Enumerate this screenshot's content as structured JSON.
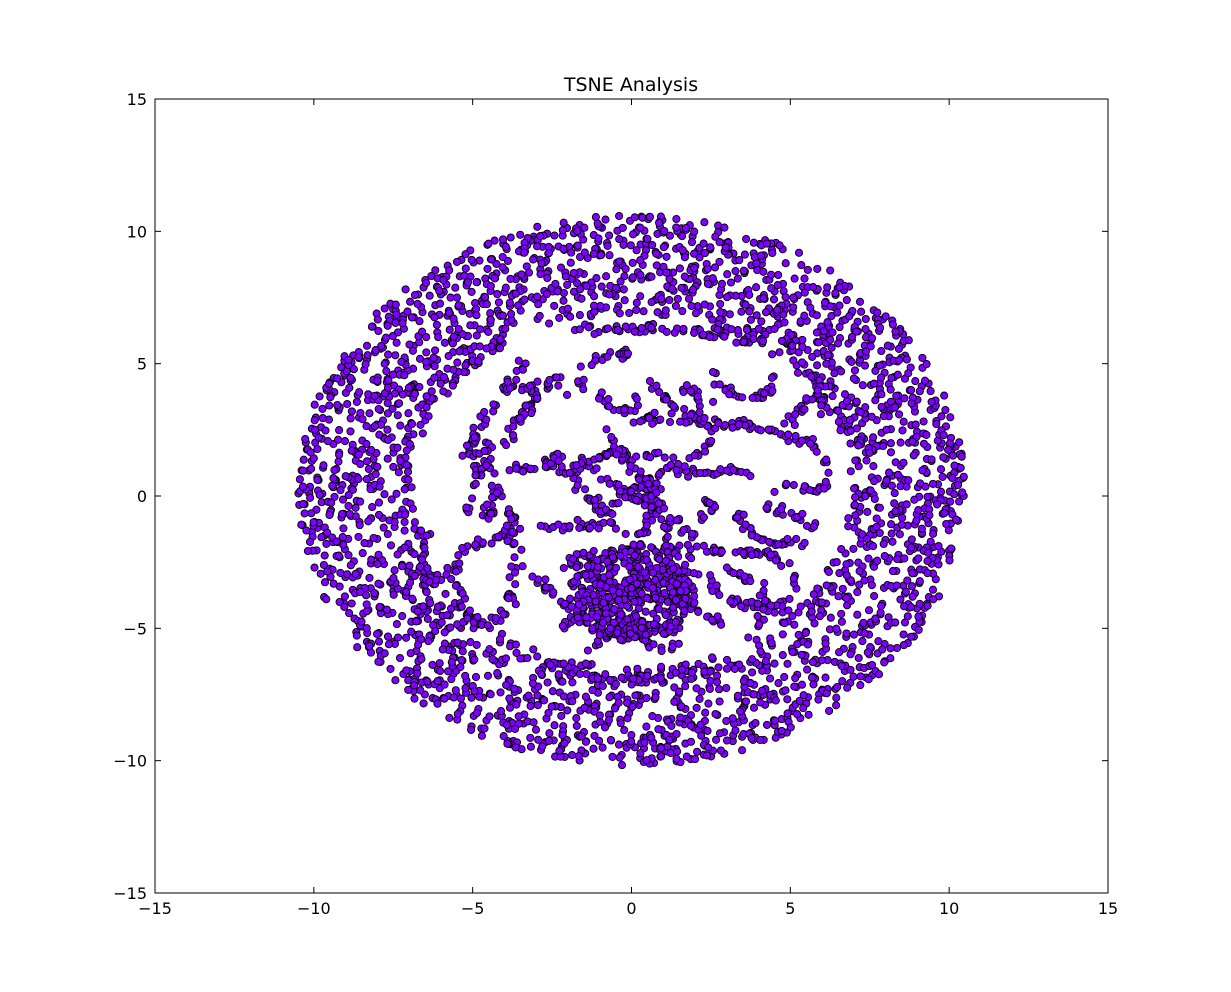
{
  "chart_data": {
    "type": "scatter",
    "title": "TSNE Analysis",
    "xlabel": "",
    "ylabel": "",
    "xlim": [
      -15,
      15
    ],
    "ylim": [
      -15,
      15
    ],
    "x_ticks": [
      -15,
      -10,
      -5,
      0,
      5,
      10,
      15
    ],
    "y_ticks": [
      -15,
      -10,
      -5,
      0,
      5,
      10,
      15
    ],
    "x_tick_labels": [
      "−15",
      "−10",
      "−5",
      "0",
      "5",
      "10",
      "15"
    ],
    "y_tick_labels": [
      "−15",
      "−10",
      "−5",
      "0",
      "5",
      "10",
      "15"
    ],
    "grid": false,
    "marker_color": "#7f00ff",
    "marker_edge_color": "#000000",
    "outer_ring": {
      "center": [
        0.0,
        0.2
      ],
      "outer_radius_x": 10.5,
      "outer_radius_y": 10.4,
      "inner_radius_x": 6.9,
      "inner_radius_y": 6.7,
      "approx_points": 2600
    },
    "inner_curves": [
      [
        [
          -5.2,
          1.5
        ],
        [
          -4.6,
          3.0
        ],
        [
          -3.6,
          4.6
        ],
        [
          -3.4,
          5.3
        ]
      ],
      [
        [
          -1.8,
          6.3
        ],
        [
          0.0,
          6.4
        ],
        [
          1.5,
          6.3
        ],
        [
          3.0,
          6.2
        ]
      ],
      [
        [
          2.0,
          6.1
        ],
        [
          3.5,
          5.9
        ],
        [
          4.5,
          5.9
        ],
        [
          5.3,
          5.8
        ]
      ],
      [
        [
          -3.5,
          4.1
        ],
        [
          -2.0,
          4.0
        ],
        [
          -1.3,
          4.2
        ]
      ],
      [
        [
          -4.0,
          2.0
        ],
        [
          -3.2,
          3.5
        ],
        [
          -2.3,
          4.6
        ],
        [
          -1.0,
          5.2
        ],
        [
          0.0,
          5.4
        ]
      ],
      [
        [
          -1.2,
          4.0
        ],
        [
          -0.6,
          3.3
        ],
        [
          0.0,
          3.2
        ],
        [
          0.2,
          3.8
        ]
      ],
      [
        [
          -5.0,
          2.4
        ],
        [
          -4.9,
          1.1
        ],
        [
          -3.9,
          0.9
        ],
        [
          -2.8,
          1.1
        ],
        [
          -2.2,
          1.6
        ]
      ],
      [
        [
          -5.2,
          -0.7
        ],
        [
          -4.8,
          0.8
        ],
        [
          -4.5,
          2.0
        ]
      ],
      [
        [
          -6.5,
          -1.3
        ],
        [
          -6.6,
          -2.5
        ],
        [
          -6.4,
          -3.6
        ]
      ],
      [
        [
          -5.6,
          -3.0
        ],
        [
          -5.3,
          -2.0
        ],
        [
          -4.0,
          -1.5
        ],
        [
          -2.5,
          -1.2
        ],
        [
          -0.6,
          -1.1
        ]
      ],
      [
        [
          -5.6,
          -3.2
        ],
        [
          -5.1,
          -4.6
        ],
        [
          -4.5,
          -4.8
        ]
      ],
      [
        [
          -3.8,
          -0.4
        ],
        [
          -3.7,
          -2.2
        ],
        [
          -3.8,
          -3.7
        ],
        [
          -4.2,
          -4.7
        ]
      ],
      [
        [
          -3.0,
          -6.0
        ],
        [
          -2.0,
          -6.6
        ],
        [
          -0.6,
          -7.0
        ],
        [
          1.0,
          -6.8
        ]
      ],
      [
        [
          -1.6,
          -6.6
        ],
        [
          -1.0,
          -5.4
        ],
        [
          0.2,
          -4.8
        ],
        [
          1.5,
          -5.2
        ]
      ],
      [
        [
          -2.6,
          -5.4
        ],
        [
          -1.5,
          -4.2
        ],
        [
          0.0,
          -3.8
        ],
        [
          1.5,
          -4.0
        ],
        [
          2.8,
          -4.8
        ]
      ],
      [
        [
          -1.0,
          2.6
        ],
        [
          -0.4,
          1.8
        ],
        [
          0.2,
          0.8
        ],
        [
          0.6,
          -0.6
        ],
        [
          0.2,
          -2.0
        ],
        [
          0.0,
          -3.4
        ],
        [
          0.3,
          -4.5
        ]
      ],
      [
        [
          -1.6,
          1.5
        ],
        [
          -0.6,
          0.4
        ],
        [
          0.5,
          -0.4
        ],
        [
          1.4,
          -1.0
        ],
        [
          2.0,
          -1.5
        ]
      ],
      [
        [
          -2.6,
          1.4
        ],
        [
          -1.8,
          0.6
        ],
        [
          -1.0,
          -0.4
        ],
        [
          -0.2,
          -1.4
        ]
      ],
      [
        [
          1.4,
          0.9
        ],
        [
          2.4,
          0.9
        ],
        [
          3.5,
          1.0
        ],
        [
          4.0,
          0.7
        ]
      ],
      [
        [
          3.3,
          2.7
        ],
        [
          4.6,
          2.4
        ],
        [
          5.7,
          2.0
        ],
        [
          6.2,
          1.0
        ],
        [
          6.0,
          0.2
        ],
        [
          5.0,
          0.4
        ],
        [
          4.5,
          0.4
        ]
      ],
      [
        [
          4.9,
          2.6
        ],
        [
          5.5,
          3.6
        ],
        [
          6.1,
          4.2
        ]
      ],
      [
        [
          4.1,
          -0.3
        ],
        [
          4.6,
          -0.5
        ],
        [
          5.6,
          -0.9
        ],
        [
          5.8,
          -1.3
        ]
      ],
      [
        [
          3.6,
          -0.5
        ],
        [
          3.3,
          -1.0
        ],
        [
          4.2,
          -1.8
        ],
        [
          5.6,
          -1.8
        ]
      ],
      [
        [
          2.2,
          0.1
        ],
        [
          2.5,
          -0.4
        ],
        [
          2.2,
          -0.9
        ]
      ],
      [
        [
          1.6,
          -1.8
        ],
        [
          3.0,
          -2.2
        ],
        [
          4.4,
          -2.2
        ],
        [
          5.0,
          -2.6
        ],
        [
          5.2,
          -3.2
        ],
        [
          4.8,
          -3.9
        ]
      ],
      [
        [
          2.3,
          -3.3
        ],
        [
          3.2,
          -4.0
        ],
        [
          4.5,
          -4.2
        ],
        [
          5.6,
          -4.6
        ]
      ],
      [
        [
          -2.3,
          -2.6
        ],
        [
          -1.2,
          -2.2
        ],
        [
          0.0,
          -2.0
        ],
        [
          1.2,
          -2.0
        ],
        [
          2.2,
          -2.4
        ]
      ],
      [
        [
          0.6,
          4.2
        ],
        [
          1.2,
          3.6
        ],
        [
          2.0,
          3.0
        ],
        [
          2.6,
          2.4
        ],
        [
          2.3,
          1.7
        ],
        [
          1.8,
          1.4
        ]
      ],
      [
        [
          0.0,
          2.8
        ],
        [
          1.0,
          2.9
        ],
        [
          2.4,
          2.9
        ],
        [
          3.4,
          2.4
        ]
      ],
      [
        [
          2.6,
          4.7
        ],
        [
          3.0,
          4.0
        ],
        [
          3.6,
          3.6
        ],
        [
          4.2,
          3.8
        ],
        [
          4.4,
          4.5
        ]
      ],
      [
        [
          1.6,
          4.1
        ],
        [
          2.3,
          3.6
        ],
        [
          2.1,
          2.9
        ]
      ],
      [
        [
          -3.4,
          -2.5
        ],
        [
          -2.6,
          -3.6
        ],
        [
          -1.8,
          -4.4
        ],
        [
          -1.0,
          -5.0
        ],
        [
          0.0,
          -5.4
        ]
      ],
      [
        [
          0.6,
          0.5
        ],
        [
          1.0,
          -0.5
        ],
        [
          1.2,
          -1.6
        ],
        [
          1.4,
          -3.0
        ],
        [
          1.5,
          -4.3
        ]
      ],
      [
        [
          -1.2,
          -3.0
        ],
        [
          -0.4,
          -3.6
        ],
        [
          0.8,
          -3.2
        ],
        [
          1.6,
          -2.8
        ],
        [
          2.6,
          -3.0
        ]
      ],
      [
        [
          -2.0,
          0.7
        ],
        [
          -1.4,
          1.4
        ],
        [
          -0.6,
          1.6
        ],
        [
          0.4,
          1.6
        ],
        [
          1.2,
          1.5
        ]
      ],
      [
        [
          -0.9,
          -0.8
        ],
        [
          -0.3,
          0.0
        ],
        [
          0.4,
          0.4
        ],
        [
          1.0,
          1.0
        ],
        [
          1.8,
          1.2
        ]
      ],
      [
        [
          -1.9,
          -2.4
        ],
        [
          -1.1,
          -3.2
        ],
        [
          -0.8,
          -4.2
        ],
        [
          -0.2,
          -5.0
        ],
        [
          0.8,
          -5.8
        ],
        [
          1.6,
          -5.6
        ]
      ],
      [
        [
          3.0,
          -2.8
        ],
        [
          3.8,
          -3.2
        ],
        [
          4.3,
          -4.0
        ],
        [
          4.0,
          -4.9
        ],
        [
          3.8,
          -5.4
        ]
      ],
      [
        [
          5.6,
          4.7
        ],
        [
          6.1,
          3.3
        ],
        [
          7.0,
          2.6
        ],
        [
          7.4,
          1.6
        ]
      ],
      [
        [
          -4.4,
          -0.3
        ],
        [
          -4.2,
          0.4
        ],
        [
          -4.6,
          -1.0
        ]
      ]
    ],
    "approx_points_per_curve": 45,
    "cloud": {
      "center": [
        0.0,
        -3.8
      ],
      "radius_x": 2.0,
      "radius_y": 1.7,
      "approx_points": 320
    }
  }
}
